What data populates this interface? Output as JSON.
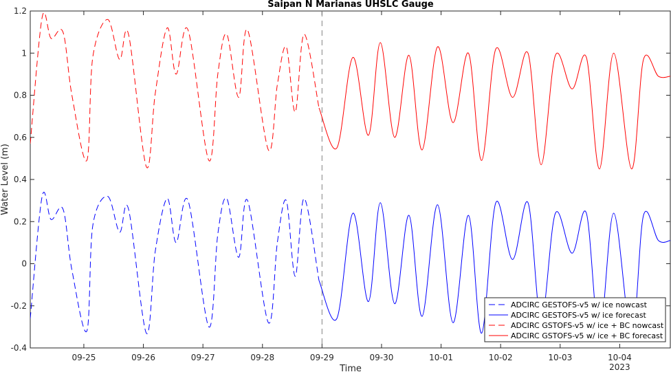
{
  "chart_data": {
    "type": "line",
    "title": "Saipan N Marianas UHSLC Gauge",
    "xlabel": "Time",
    "ylabel": "Water Level (m)",
    "x_range": [
      "2022-09-24 02:00",
      "2023-10-04 07:00"
    ],
    "ylim": [
      -0.4,
      1.2
    ],
    "y_ticks": [
      -0.4,
      -0.2,
      0,
      0.2,
      0.4,
      0.6,
      0.8,
      1,
      1.2
    ],
    "y_tick_labels": [
      "-0.4",
      "-0.2",
      "0",
      "0.2",
      "0.4",
      "0.6",
      "0.8",
      "1",
      "1.2"
    ],
    "x_ticks": [
      "09-25",
      "09-26",
      "09-27",
      "09-28",
      "09-29",
      "09-30",
      "10-01",
      "10-02",
      "10-03",
      "10-04"
    ],
    "x_year_label": "2023",
    "nowcast_forecast_boundary": "09-29",
    "grid": false,
    "legend_position": "bottom-right",
    "series": [
      {
        "name": "ADCIRC GESTOFS-v5 w/ ice nowcast",
        "color": "#0000ff",
        "style": "dashed",
        "x_days": [
          0.0,
          0.2,
          0.35,
          0.55,
          0.7,
          0.95,
          1.05,
          1.3,
          1.5,
          1.65,
          1.95,
          2.1,
          2.3,
          2.45,
          2.65,
          3.0,
          3.15,
          3.3,
          3.5,
          3.65,
          4.0,
          4.15,
          4.3,
          4.45,
          4.6,
          4.85
        ],
        "values": [
          -0.26,
          0.32,
          0.21,
          0.26,
          -0.03,
          -0.32,
          0.18,
          0.32,
          0.15,
          0.26,
          -0.33,
          0.06,
          0.31,
          0.1,
          0.3,
          -0.3,
          0.14,
          0.31,
          0.03,
          0.3,
          -0.28,
          0.1,
          0.3,
          -0.06,
          0.31,
          -0.08
        ]
      },
      {
        "name": "ADCIRC GESTOFS-v5 w/ ice forecast",
        "color": "#0000ff",
        "style": "solid",
        "x_days": [
          4.85,
          5.15,
          5.42,
          5.68,
          5.88,
          6.12,
          6.36,
          6.58,
          6.84,
          7.1,
          7.36,
          7.58,
          7.82,
          8.1,
          8.36,
          8.58,
          8.82,
          9.1,
          9.34,
          9.56,
          9.8,
          10.1,
          10.3,
          10.55,
          10.75
        ],
        "values": [
          -0.08,
          -0.26,
          0.24,
          -0.18,
          0.29,
          -0.19,
          0.23,
          -0.25,
          0.28,
          -0.28,
          0.23,
          -0.33,
          0.29,
          0.02,
          0.29,
          -0.27,
          0.24,
          0.05,
          0.24,
          -0.34,
          0.24,
          -0.35,
          0.23,
          0.11,
          0.11
        ]
      },
      {
        "name": "ADCIRC GSTOFS-v5 w/ ice + BC nowcast",
        "color": "#ff0000",
        "style": "dashed",
        "x_days": [
          0.0,
          0.2,
          0.35,
          0.55,
          0.7,
          0.95,
          1.05,
          1.3,
          1.5,
          1.65,
          1.95,
          2.1,
          2.3,
          2.45,
          2.65,
          3.0,
          3.15,
          3.3,
          3.5,
          3.65,
          4.0,
          4.15,
          4.3,
          4.45,
          4.6,
          4.85
        ],
        "values": [
          0.57,
          1.17,
          1.07,
          1.1,
          0.8,
          0.49,
          0.98,
          1.16,
          0.97,
          1.09,
          0.46,
          0.81,
          1.12,
          0.9,
          1.11,
          0.49,
          0.9,
          1.09,
          0.79,
          1.11,
          0.54,
          0.85,
          1.03,
          0.72,
          1.09,
          0.74
        ]
      },
      {
        "name": "ADCIRC GSTOFS-v5 w/ ice + BC forecast",
        "color": "#ff0000",
        "style": "solid",
        "x_days": [
          4.85,
          5.15,
          5.42,
          5.68,
          5.88,
          6.12,
          6.36,
          6.58,
          6.84,
          7.1,
          7.36,
          7.58,
          7.82,
          8.1,
          8.36,
          8.58,
          8.82,
          9.1,
          9.34,
          9.56,
          9.8,
          10.1,
          10.3,
          10.55,
          10.75
        ],
        "values": [
          0.74,
          0.55,
          0.98,
          0.61,
          1.05,
          0.6,
          0.99,
          0.54,
          1.03,
          0.67,
          1.0,
          0.49,
          1.02,
          0.79,
          1.0,
          0.47,
          0.99,
          0.83,
          0.98,
          0.45,
          1.0,
          0.45,
          0.97,
          0.89,
          0.89
        ]
      }
    ]
  }
}
